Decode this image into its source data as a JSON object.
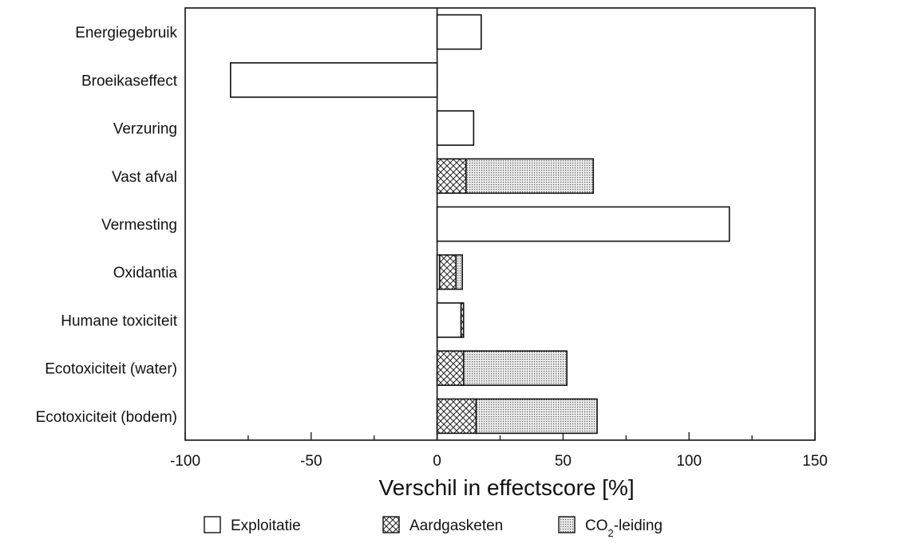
{
  "chart_data": {
    "type": "bar",
    "orientation": "horizontal",
    "stacked": true,
    "categories": [
      "Energiegebruik",
      "Broeikaseffect",
      "Verzuring",
      "Vast afval",
      "Vermesting",
      "Oxidantia",
      "Humane toxiciteit",
      "Ecotoxiciteit (water)",
      "Ecotoxiciteit (bodem)"
    ],
    "series": [
      {
        "name": "Exploitatie",
        "pattern": "blank",
        "values": [
          17.5,
          -82,
          14.5,
          0,
          116,
          1,
          9.5,
          0,
          0
        ]
      },
      {
        "name": "Aardgasketen",
        "pattern": "crosshatch",
        "values": [
          0,
          0,
          0,
          11.5,
          0,
          6.5,
          1,
          10.5,
          15.5
        ]
      },
      {
        "name": "CO",
        "name_sub": "2",
        "name_suffix": "-leiding",
        "pattern": "dotted",
        "values": [
          0,
          0,
          0,
          50.5,
          0,
          2.5,
          0,
          41,
          48
        ]
      }
    ],
    "xlabel": "Verschil in effectscore [%]",
    "ylabel": "",
    "xlim": [
      -100,
      150
    ],
    "xticks": [
      -100,
      -50,
      0,
      50,
      100,
      150
    ],
    "grid": false,
    "legend_position": "bottom-center"
  }
}
